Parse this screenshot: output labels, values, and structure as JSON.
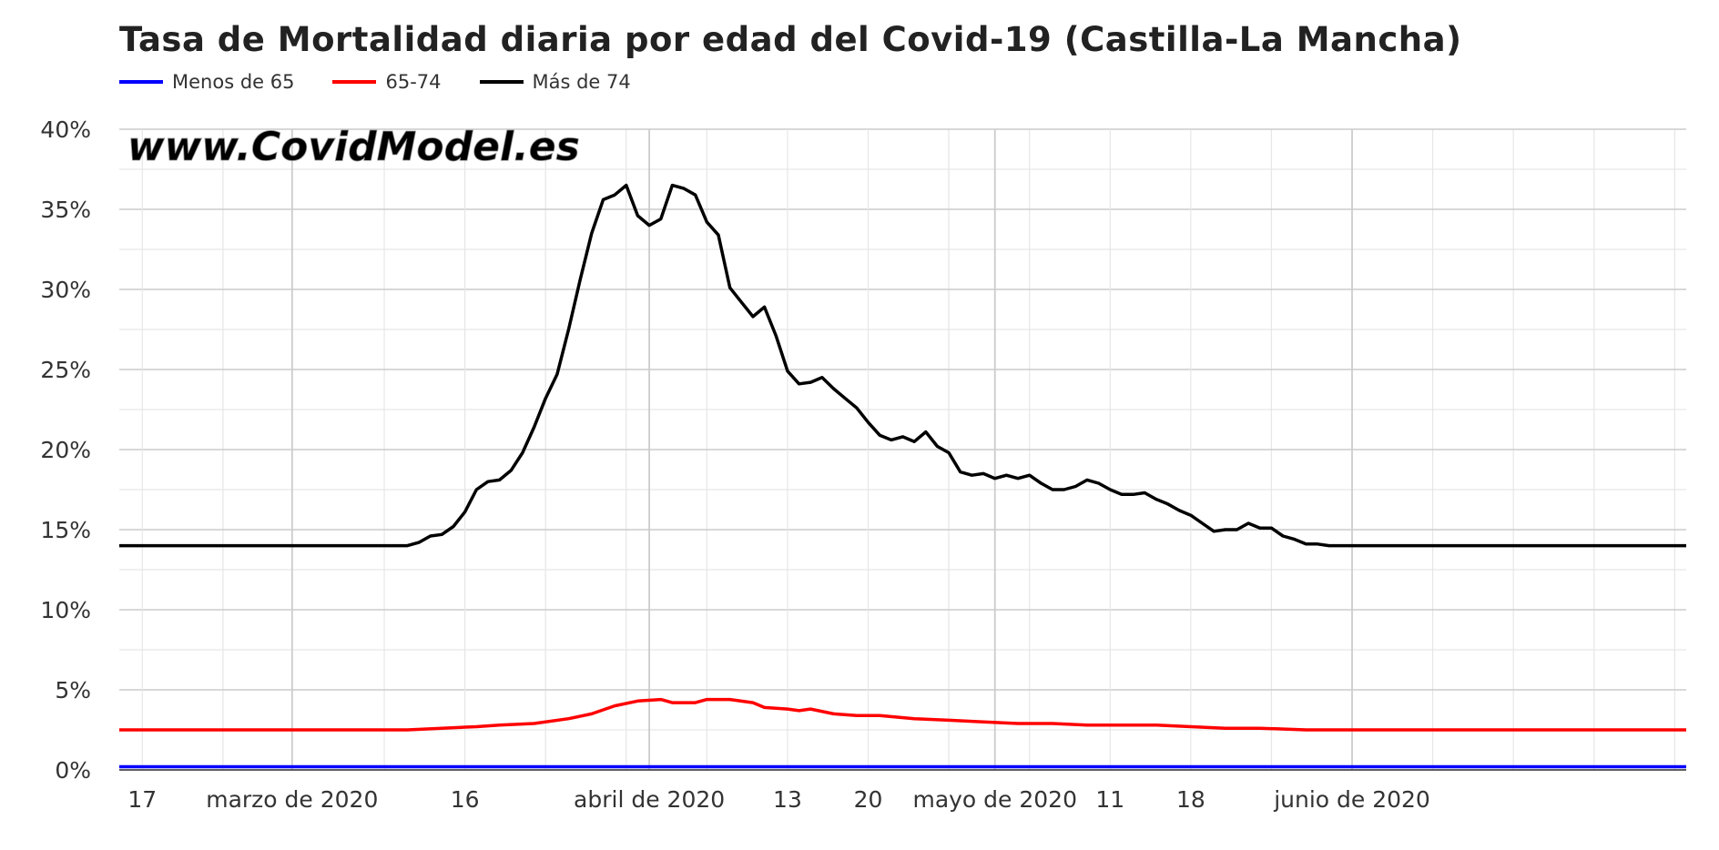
{
  "title": "Tasa de Mortalidad diaria por edad del Covid-19 (Castilla-La Mancha)",
  "watermark": "www.CovidModel.es",
  "colors": {
    "menos65": "#0000ff",
    "r6574": "#ff0000",
    "mas74": "#000000",
    "grid_major": "#cccccc",
    "grid_minor": "#e6e6e6"
  },
  "chart_data": {
    "type": "line",
    "title": "Tasa de Mortalidad diaria por edad del Covid-19 (Castilla-La Mancha)",
    "xlabel": "",
    "ylabel": "",
    "x_range": [
      "2020-02-15",
      "2020-06-30"
    ],
    "ylim": [
      0,
      40
    ],
    "yticks": [
      0,
      5,
      10,
      15,
      20,
      25,
      30,
      35,
      40
    ],
    "ytick_labels": [
      "0%",
      "5%",
      "10%",
      "15%",
      "20%",
      "25%",
      "30%",
      "35%",
      "40%"
    ],
    "xticks": [
      {
        "date": "2020-02-17",
        "label": "17"
      },
      {
        "date": "2020-03-01",
        "label": "marzo de 2020"
      },
      {
        "date": "2020-03-16",
        "label": "16"
      },
      {
        "date": "2020-04-01",
        "label": "abril de 2020"
      },
      {
        "date": "2020-04-13",
        "label": "13"
      },
      {
        "date": "2020-04-20",
        "label": "20"
      },
      {
        "date": "2020-05-01",
        "label": "mayo de 2020"
      },
      {
        "date": "2020-05-11",
        "label": "11"
      },
      {
        "date": "2020-05-18",
        "label": "18"
      },
      {
        "date": "2020-06-01",
        "label": "junio de 2020"
      }
    ],
    "minor_grid_dates": [
      "2020-02-24",
      "2020-03-09",
      "2020-03-23",
      "2020-03-30",
      "2020-04-06",
      "2020-04-27",
      "2020-05-04",
      "2020-05-25",
      "2020-06-08",
      "2020-06-15",
      "2020-06-22",
      "2020-06-29"
    ],
    "grid": true,
    "legend_position": "top-left",
    "series": [
      {
        "name": "Menos de 65",
        "color": "#0000ff",
        "points": [
          [
            "2020-02-15",
            0.2
          ],
          [
            "2020-06-30",
            0.2
          ]
        ]
      },
      {
        "name": "65-74",
        "color": "#ff0000",
        "points": [
          [
            "2020-02-15",
            2.5
          ],
          [
            "2020-03-11",
            2.5
          ],
          [
            "2020-03-14",
            2.6
          ],
          [
            "2020-03-17",
            2.7
          ],
          [
            "2020-03-19",
            2.8
          ],
          [
            "2020-03-22",
            2.9
          ],
          [
            "2020-03-25",
            3.2
          ],
          [
            "2020-03-27",
            3.5
          ],
          [
            "2020-03-29",
            4.0
          ],
          [
            "2020-03-31",
            4.3
          ],
          [
            "2020-04-02",
            4.4
          ],
          [
            "2020-04-03",
            4.2
          ],
          [
            "2020-04-05",
            4.2
          ],
          [
            "2020-04-06",
            4.4
          ],
          [
            "2020-04-08",
            4.4
          ],
          [
            "2020-04-10",
            4.2
          ],
          [
            "2020-04-11",
            3.9
          ],
          [
            "2020-04-13",
            3.8
          ],
          [
            "2020-04-14",
            3.7
          ],
          [
            "2020-04-15",
            3.8
          ],
          [
            "2020-04-17",
            3.5
          ],
          [
            "2020-04-19",
            3.4
          ],
          [
            "2020-04-21",
            3.4
          ],
          [
            "2020-04-24",
            3.2
          ],
          [
            "2020-04-27",
            3.1
          ],
          [
            "2020-04-30",
            3.0
          ],
          [
            "2020-05-03",
            2.9
          ],
          [
            "2020-05-06",
            2.9
          ],
          [
            "2020-05-09",
            2.8
          ],
          [
            "2020-05-12",
            2.8
          ],
          [
            "2020-05-15",
            2.8
          ],
          [
            "2020-05-18",
            2.7
          ],
          [
            "2020-05-21",
            2.6
          ],
          [
            "2020-05-24",
            2.6
          ],
          [
            "2020-05-28",
            2.5
          ],
          [
            "2020-06-30",
            2.5
          ]
        ]
      },
      {
        "name": "Más de 74",
        "color": "#000000",
        "points": [
          [
            "2020-02-15",
            14.0
          ],
          [
            "2020-03-11",
            14.0
          ],
          [
            "2020-03-12",
            14.2
          ],
          [
            "2020-03-13",
            14.6
          ],
          [
            "2020-03-14",
            14.7
          ],
          [
            "2020-03-15",
            15.2
          ],
          [
            "2020-03-16",
            16.1
          ],
          [
            "2020-03-17",
            17.5
          ],
          [
            "2020-03-18",
            18.0
          ],
          [
            "2020-03-19",
            18.1
          ],
          [
            "2020-03-20",
            18.7
          ],
          [
            "2020-03-21",
            19.8
          ],
          [
            "2020-03-22",
            21.4
          ],
          [
            "2020-03-23",
            23.2
          ],
          [
            "2020-03-24",
            24.7
          ],
          [
            "2020-03-25",
            27.5
          ],
          [
            "2020-03-26",
            30.6
          ],
          [
            "2020-03-27",
            33.5
          ],
          [
            "2020-03-28",
            35.6
          ],
          [
            "2020-03-29",
            35.9
          ],
          [
            "2020-03-30",
            36.5
          ],
          [
            "2020-03-31",
            34.6
          ],
          [
            "2020-04-01",
            34.0
          ],
          [
            "2020-04-02",
            34.4
          ],
          [
            "2020-04-03",
            36.5
          ],
          [
            "2020-04-04",
            36.3
          ],
          [
            "2020-04-05",
            35.9
          ],
          [
            "2020-04-06",
            34.2
          ],
          [
            "2020-04-07",
            33.4
          ],
          [
            "2020-04-08",
            30.1
          ],
          [
            "2020-04-09",
            29.2
          ],
          [
            "2020-04-10",
            28.3
          ],
          [
            "2020-04-11",
            28.9
          ],
          [
            "2020-04-12",
            27.1
          ],
          [
            "2020-04-13",
            24.9
          ],
          [
            "2020-04-14",
            24.1
          ],
          [
            "2020-04-15",
            24.2
          ],
          [
            "2020-04-16",
            24.5
          ],
          [
            "2020-04-17",
            23.8
          ],
          [
            "2020-04-18",
            23.2
          ],
          [
            "2020-04-19",
            22.6
          ],
          [
            "2020-04-20",
            21.7
          ],
          [
            "2020-04-21",
            20.9
          ],
          [
            "2020-04-22",
            20.6
          ],
          [
            "2020-04-23",
            20.8
          ],
          [
            "2020-04-24",
            20.5
          ],
          [
            "2020-04-25",
            21.1
          ],
          [
            "2020-04-26",
            20.2
          ],
          [
            "2020-04-27",
            19.8
          ],
          [
            "2020-04-28",
            18.6
          ],
          [
            "2020-04-29",
            18.4
          ],
          [
            "2020-04-30",
            18.5
          ],
          [
            "2020-05-01",
            18.2
          ],
          [
            "2020-05-02",
            18.4
          ],
          [
            "2020-05-03",
            18.2
          ],
          [
            "2020-05-04",
            18.4
          ],
          [
            "2020-05-05",
            17.9
          ],
          [
            "2020-05-06",
            17.5
          ],
          [
            "2020-05-07",
            17.5
          ],
          [
            "2020-05-08",
            17.7
          ],
          [
            "2020-05-09",
            18.1
          ],
          [
            "2020-05-10",
            17.9
          ],
          [
            "2020-05-11",
            17.5
          ],
          [
            "2020-05-12",
            17.2
          ],
          [
            "2020-05-13",
            17.2
          ],
          [
            "2020-05-14",
            17.3
          ],
          [
            "2020-05-15",
            16.9
          ],
          [
            "2020-05-16",
            16.6
          ],
          [
            "2020-05-17",
            16.2
          ],
          [
            "2020-05-18",
            15.9
          ],
          [
            "2020-05-19",
            15.4
          ],
          [
            "2020-05-20",
            14.9
          ],
          [
            "2020-05-21",
            15.0
          ],
          [
            "2020-05-22",
            15.0
          ],
          [
            "2020-05-23",
            15.4
          ],
          [
            "2020-05-24",
            15.1
          ],
          [
            "2020-05-25",
            15.1
          ],
          [
            "2020-05-26",
            14.6
          ],
          [
            "2020-05-27",
            14.4
          ],
          [
            "2020-05-28",
            14.1
          ],
          [
            "2020-05-29",
            14.1
          ],
          [
            "2020-05-30",
            14.0
          ],
          [
            "2020-06-30",
            14.0
          ]
        ]
      }
    ]
  }
}
